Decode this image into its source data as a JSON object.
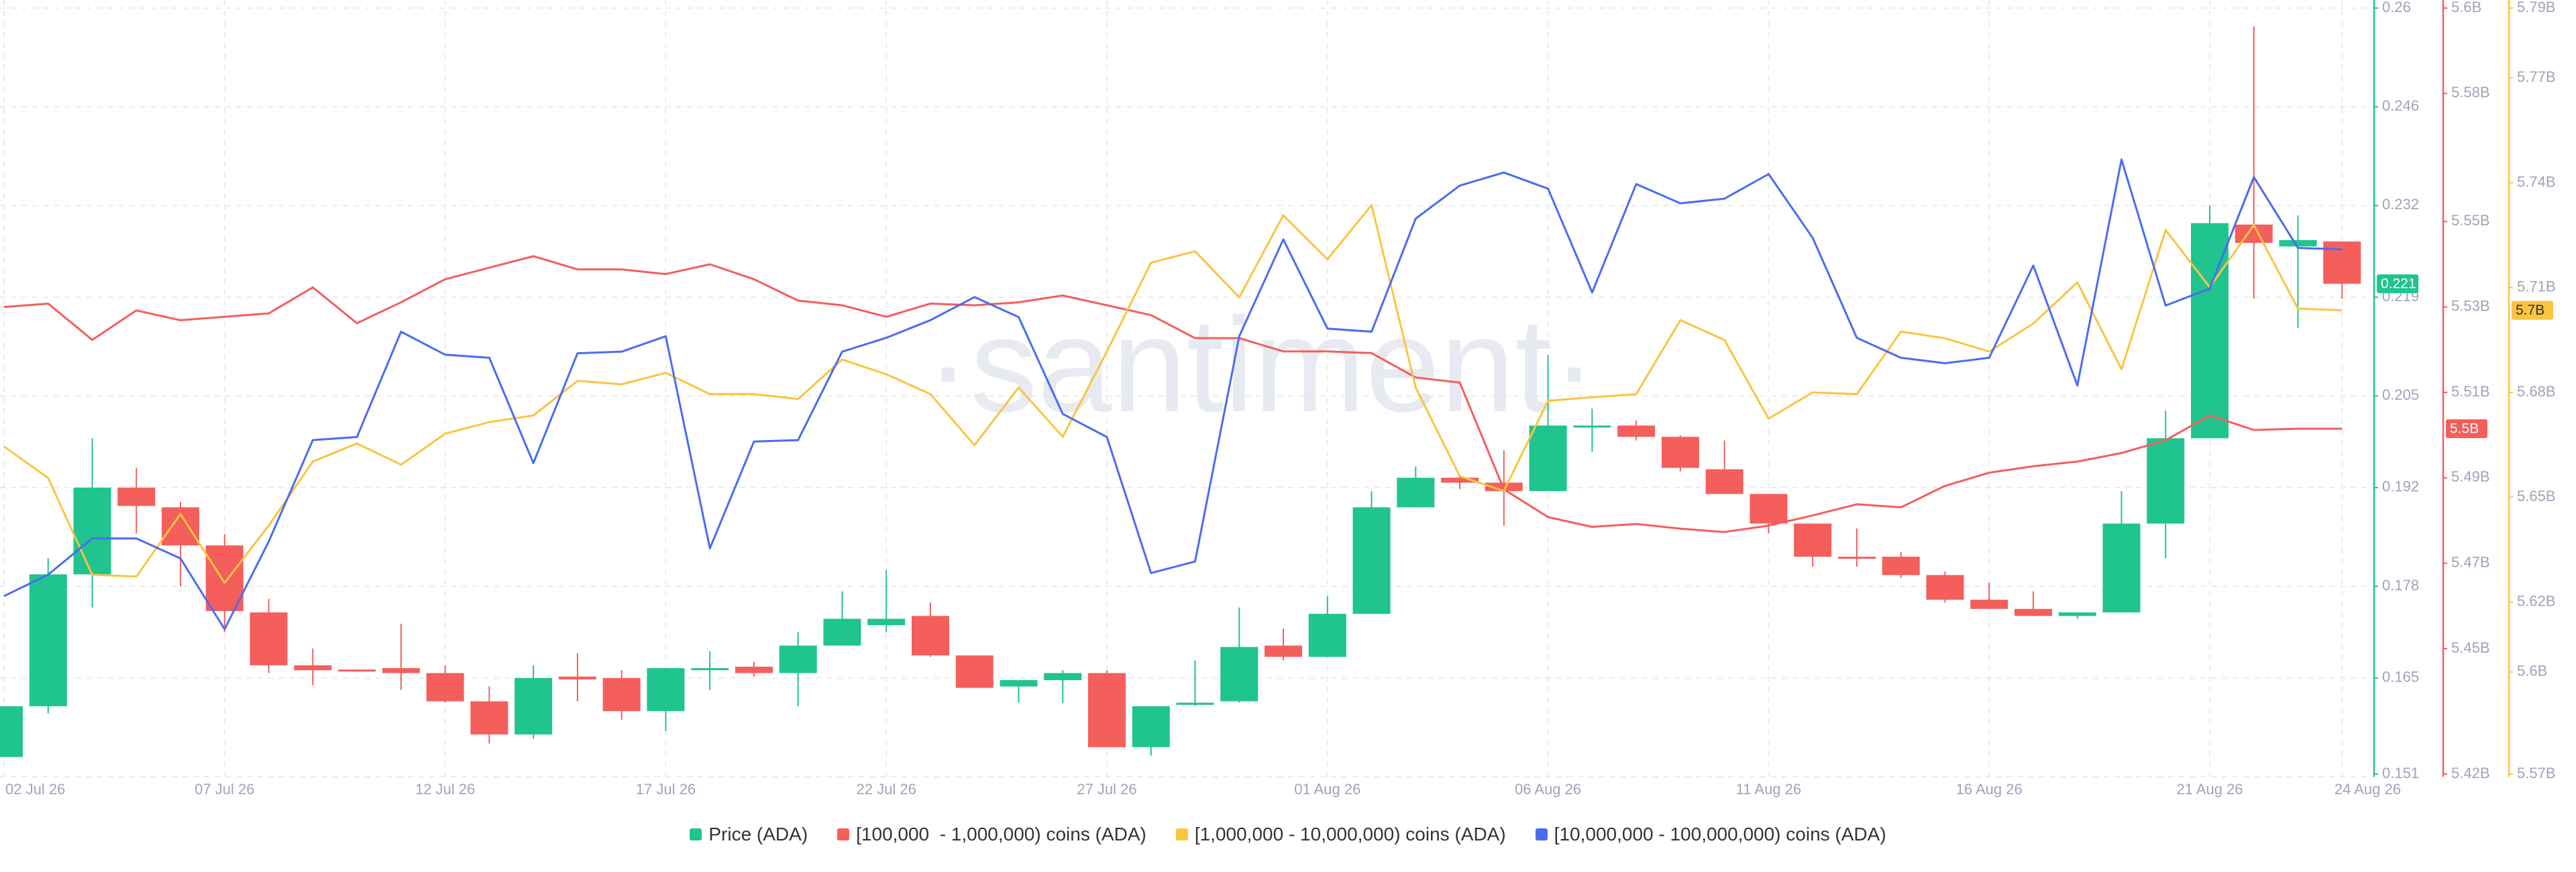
{
  "chart_data": {
    "type": "candlestick",
    "watermark": "·santiment·",
    "categories": [
      "02 Jul 26",
      null,
      null,
      null,
      null,
      "07 Jul 26",
      null,
      null,
      null,
      null,
      "12 Jul 26",
      null,
      null,
      null,
      null,
      "17 Jul 26",
      null,
      null,
      null,
      null,
      "22 Jul 26",
      null,
      null,
      null,
      null,
      "27 Jul 26",
      null,
      null,
      null,
      null,
      "01 Aug 26",
      null,
      null,
      null,
      null,
      "06 Aug 26",
      null,
      null,
      null,
      null,
      "11 Aug 26",
      null,
      null,
      null,
      null,
      "16 Aug 26",
      null,
      null,
      null,
      null,
      "21 Aug 26",
      null,
      null,
      "24 Aug 26"
    ],
    "ylim": [
      0.151,
      0.26
    ],
    "yticks": [
      0.26,
      0.246,
      0.232,
      0.219,
      0.205,
      0.192,
      0.178,
      0.165,
      0.151
    ],
    "y2lim": [
      5.42,
      5.6
    ],
    "y2ticks": [
      {
        "value": 5.6,
        "label": "5.6B"
      },
      {
        "value": 5.58,
        "label": "5.58B"
      },
      {
        "value": 5.55,
        "label": "5.55B"
      },
      {
        "value": 5.53,
        "label": "5.53B"
      },
      {
        "value": 5.51,
        "label": "5.51B"
      },
      {
        "value": 5.49,
        "label": "5.49B"
      },
      {
        "value": 5.47,
        "label": "5.47B"
      },
      {
        "value": 5.45,
        "label": "5.45B"
      },
      {
        "value": 5.42,
        "label": "5.42B"
      }
    ],
    "y3lim": [
      5.57,
      5.79
    ],
    "y3ticks": [
      {
        "value": 5.79,
        "label": "5.79B"
      },
      {
        "value": 5.77,
        "label": "5.77B"
      },
      {
        "value": 5.74,
        "label": "5.74B"
      },
      {
        "value": 5.71,
        "label": "5.71B"
      },
      {
        "value": 5.68,
        "label": "5.68B"
      },
      {
        "value": 5.65,
        "label": "5.65B"
      },
      {
        "value": 5.62,
        "label": "5.62B"
      },
      {
        "value": 5.6,
        "label": "5.6B"
      },
      {
        "value": 5.57,
        "label": "5.57B"
      }
    ],
    "y4lim": [
      0,
      100
    ],
    "grid": true,
    "price": {
      "name": "Price (ADA)",
      "color": "#1fc48f",
      "down_color": "#f45e5b",
      "axis": "y",
      "current_label": "0.221",
      "open": [
        0.1538,
        0.161,
        0.1797,
        0.192,
        0.1892,
        0.1838,
        0.1743,
        0.1668,
        0.1662,
        0.1664,
        0.1657,
        0.1617,
        0.157,
        0.1652,
        0.165,
        0.1603,
        0.1664,
        0.1666,
        0.1657,
        0.1696,
        0.1725,
        0.1738,
        0.1682,
        0.1638,
        0.1647,
        0.1657,
        0.1552,
        0.1612,
        0.1617,
        0.1696,
        0.168,
        0.1741,
        0.1892,
        0.1934,
        0.1927,
        0.1915,
        0.2008,
        0.2008,
        0.1992,
        0.1946,
        0.1911,
        0.1869,
        0.1822,
        0.1822,
        0.1796,
        0.1761,
        0.1748,
        0.1738,
        0.1743,
        0.1869,
        0.199,
        0.2293,
        0.2262,
        0.2269
      ],
      "high": [
        0.161,
        0.182,
        0.199,
        0.1948,
        0.19,
        0.1854,
        0.1762,
        0.1692,
        0.1662,
        0.1727,
        0.1668,
        0.1638,
        0.1668,
        0.1685,
        0.1661,
        0.1664,
        0.1688,
        0.1673,
        0.1715,
        0.1773,
        0.1803,
        0.1757,
        0.1682,
        0.1647,
        0.1661,
        0.1661,
        0.161,
        0.1675,
        0.175,
        0.172,
        0.1766,
        0.1915,
        0.195,
        0.1938,
        0.1973,
        0.2108,
        0.2032,
        0.2015,
        0.1994,
        0.1987,
        0.1911,
        0.1869,
        0.1862,
        0.1829,
        0.1801,
        0.1785,
        0.1773,
        0.1743,
        0.1915,
        0.2029,
        0.232,
        0.2574,
        0.2306,
        0.2269
      ],
      "low": [
        0.1538,
        0.16,
        0.175,
        0.1855,
        0.178,
        0.1715,
        0.1657,
        0.164,
        0.166,
        0.1633,
        0.1615,
        0.1557,
        0.1564,
        0.1617,
        0.1591,
        0.1575,
        0.1633,
        0.1652,
        0.161,
        0.1696,
        0.1715,
        0.168,
        0.1636,
        0.1615,
        0.1615,
        0.1552,
        0.154,
        0.161,
        0.1615,
        0.1675,
        0.168,
        0.1741,
        0.1892,
        0.1918,
        0.1866,
        0.1915,
        0.1971,
        0.1987,
        0.1943,
        0.1911,
        0.1855,
        0.1808,
        0.1808,
        0.1792,
        0.1757,
        0.1748,
        0.1738,
        0.1734,
        0.1743,
        0.182,
        0.199,
        0.2188,
        0.2146,
        0.2188
      ],
      "close": [
        0.161,
        0.1797,
        0.192,
        0.1894,
        0.1838,
        0.1745,
        0.1668,
        0.1661,
        0.166,
        0.1657,
        0.1617,
        0.157,
        0.165,
        0.1648,
        0.1603,
        0.1664,
        0.1664,
        0.1657,
        0.1696,
        0.1734,
        0.1734,
        0.1682,
        0.1636,
        0.1647,
        0.1657,
        0.1552,
        0.161,
        0.1615,
        0.1694,
        0.168,
        0.1741,
        0.1892,
        0.1934,
        0.1927,
        0.1915,
        0.2008,
        0.2008,
        0.1992,
        0.1948,
        0.1911,
        0.1869,
        0.1822,
        0.182,
        0.1796,
        0.1761,
        0.1748,
        0.1738,
        0.1743,
        0.1869,
        0.199,
        0.2295,
        0.2267,
        0.2271,
        0.2209
      ]
    },
    "series": [
      {
        "name": "[100,000  - 1,000,000) coins (ADA)",
        "color": "#f45e5b",
        "axis": "y2",
        "current_label": "5.5B",
        "values": [
          5.53,
          5.5308,
          5.5223,
          5.5292,
          5.5269,
          5.5277,
          5.5285,
          5.5346,
          5.5262,
          5.5311,
          5.5365,
          5.5392,
          5.5419,
          5.5388,
          5.5388,
          5.5377,
          5.54,
          5.5365,
          5.5315,
          5.5304,
          5.5277,
          5.5308,
          5.5304,
          5.5311,
          5.5327,
          5.5304,
          5.5281,
          5.5227,
          5.5227,
          5.5196,
          5.5196,
          5.5192,
          5.5135,
          5.5123,
          5.4873,
          5.4808,
          5.4785,
          5.4792,
          5.4781,
          5.4773,
          5.4788,
          5.4812,
          5.4838,
          5.4831,
          5.4881,
          5.4912,
          5.4927,
          5.4938,
          5.4958,
          5.4988,
          5.5046,
          5.5012,
          5.5015,
          5.5015
        ]
      },
      {
        "name": "[1,000,000 - 10,000,000) coins (ADA)",
        "color": "#f9c440",
        "axis": "y3",
        "current_label": "5.7B",
        "values": [
          5.6645,
          5.6555,
          5.6278,
          5.6273,
          5.6452,
          5.6255,
          5.6419,
          5.6602,
          5.6654,
          5.6593,
          5.6682,
          5.6715,
          5.6734,
          5.6833,
          5.6823,
          5.6856,
          5.6795,
          5.6795,
          5.6781,
          5.6894,
          5.6852,
          5.6795,
          5.6649,
          5.6814,
          5.6673,
          5.6917,
          5.7171,
          5.7204,
          5.7072,
          5.7307,
          5.7181,
          5.7336,
          5.6814,
          5.656,
          5.6518,
          5.6776,
          5.6786,
          5.6795,
          5.7007,
          5.695,
          5.6725,
          5.68,
          5.6795,
          5.6974,
          5.6955,
          5.6917,
          5.6997,
          5.7115,
          5.6866,
          5.7265,
          5.7101,
          5.7279,
          5.704,
          5.7035
        ]
      },
      {
        "name": "[10,000,000 - 100,000,000) coins (ADA)",
        "color": "#4a6cf0",
        "axis": "y4",
        "values": [
          23.5,
          26.3,
          31.0,
          31.0,
          28.4,
          19.2,
          30.6,
          43.8,
          44.2,
          57.9,
          54.9,
          54.5,
          40.8,
          55.1,
          55.3,
          57.3,
          29.7,
          43.6,
          43.8,
          55.3,
          57.1,
          59.4,
          62.4,
          59.8,
          47.2,
          44.2,
          26.5,
          28.0,
          57.3,
          69.9,
          58.3,
          57.9,
          72.6,
          76.9,
          78.6,
          76.5,
          63.0,
          77.1,
          74.6,
          75.2,
          78.4,
          70.1,
          57.1,
          54.5,
          53.8,
          54.5,
          66.5,
          50.9,
          80.3,
          61.3,
          63.5,
          78.0,
          68.8,
          68.6
        ]
      }
    ]
  }
}
